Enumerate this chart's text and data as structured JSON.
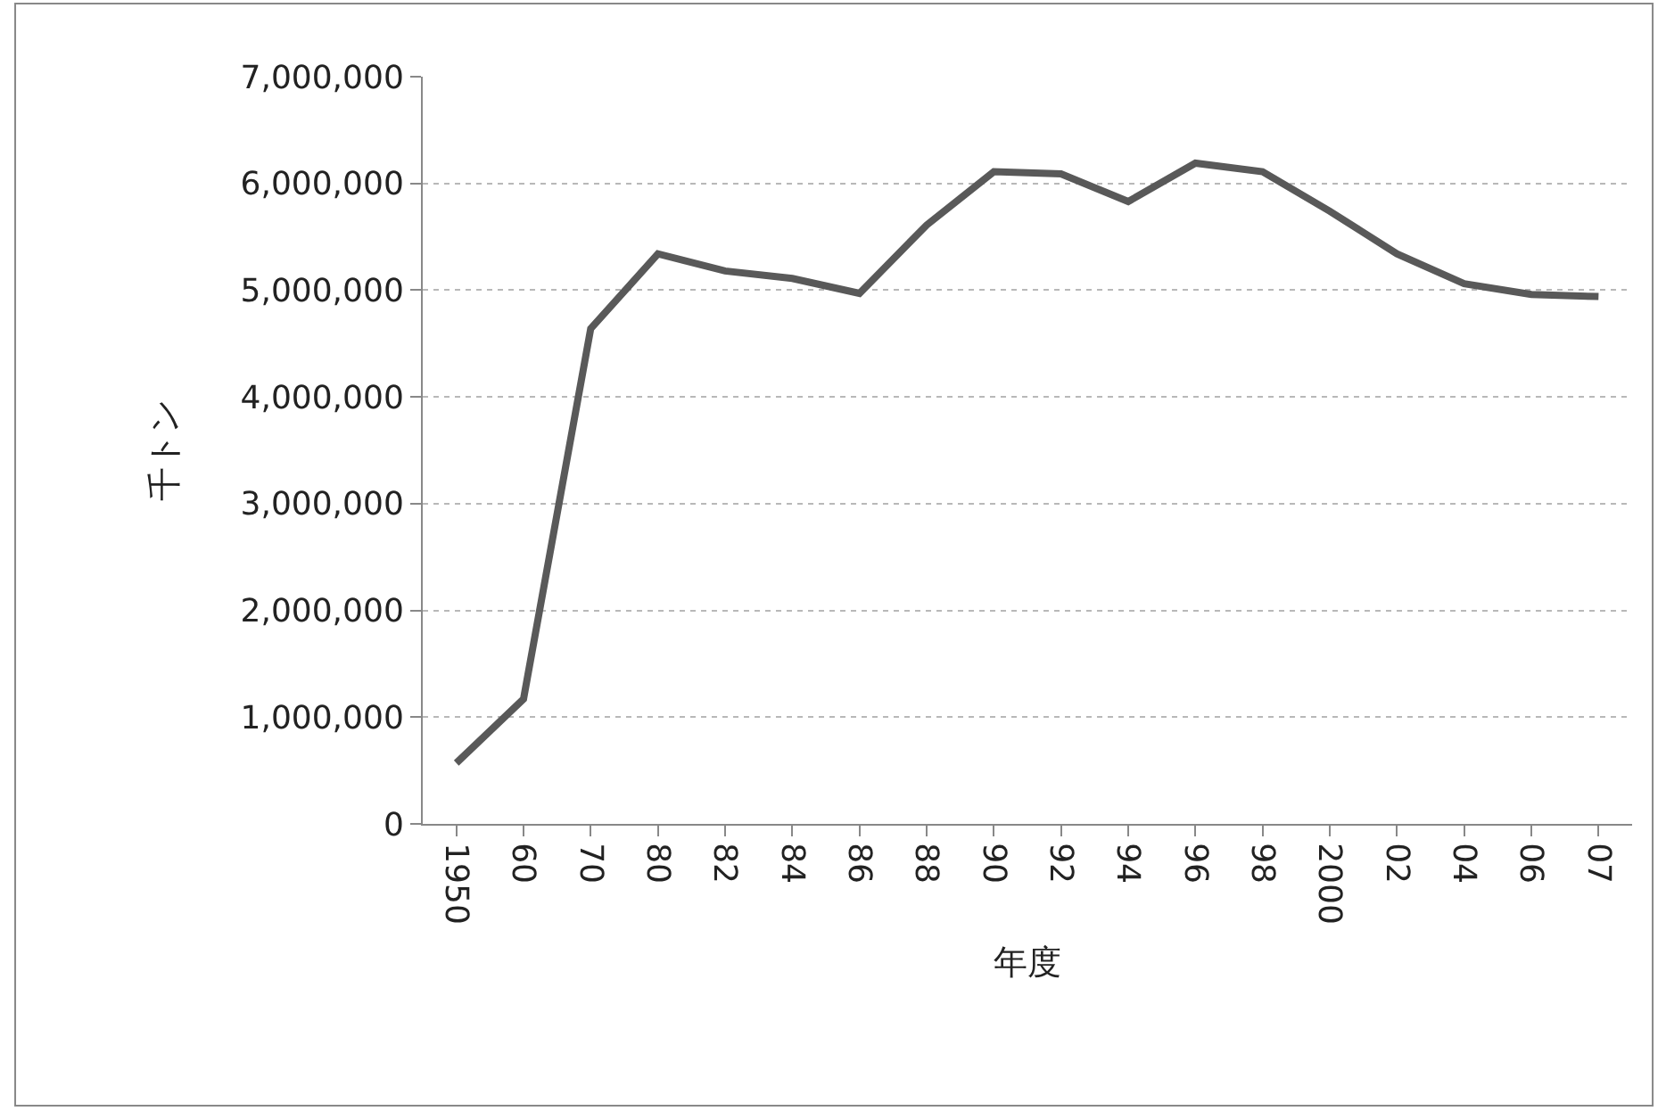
{
  "chart_data": {
    "type": "line",
    "xlabel": "年度",
    "ylabel": "千トン",
    "categories": [
      "1950",
      "60",
      "70",
      "80",
      "82",
      "84",
      "86",
      "88",
      "90",
      "92",
      "94",
      "96",
      "98",
      "2000",
      "02",
      "04",
      "06",
      "07"
    ],
    "series": [
      {
        "color": "#595959",
        "values": [
          570000,
          1170000,
          4640000,
          5340000,
          5180000,
          5110000,
          4970000,
          5610000,
          6110000,
          6090000,
          5830000,
          6190000,
          6110000,
          5740000,
          5340000,
          5060000,
          4960000,
          4940000
        ]
      }
    ],
    "ylim": [
      0,
      7000000
    ],
    "yticks": [
      {
        "value": 0,
        "label": "0"
      },
      {
        "value": 1000000,
        "label": "1,000,000"
      },
      {
        "value": 2000000,
        "label": "2,000,000"
      },
      {
        "value": 3000000,
        "label": "3,000,000"
      },
      {
        "value": 4000000,
        "label": "4,000,000"
      },
      {
        "value": 5000000,
        "label": "5,000,000"
      },
      {
        "value": 6000000,
        "label": "6,000,000"
      },
      {
        "value": 7000000,
        "label": "7,000,000"
      }
    ],
    "grid": "y",
    "marker": "none",
    "line_style": "solid"
  }
}
